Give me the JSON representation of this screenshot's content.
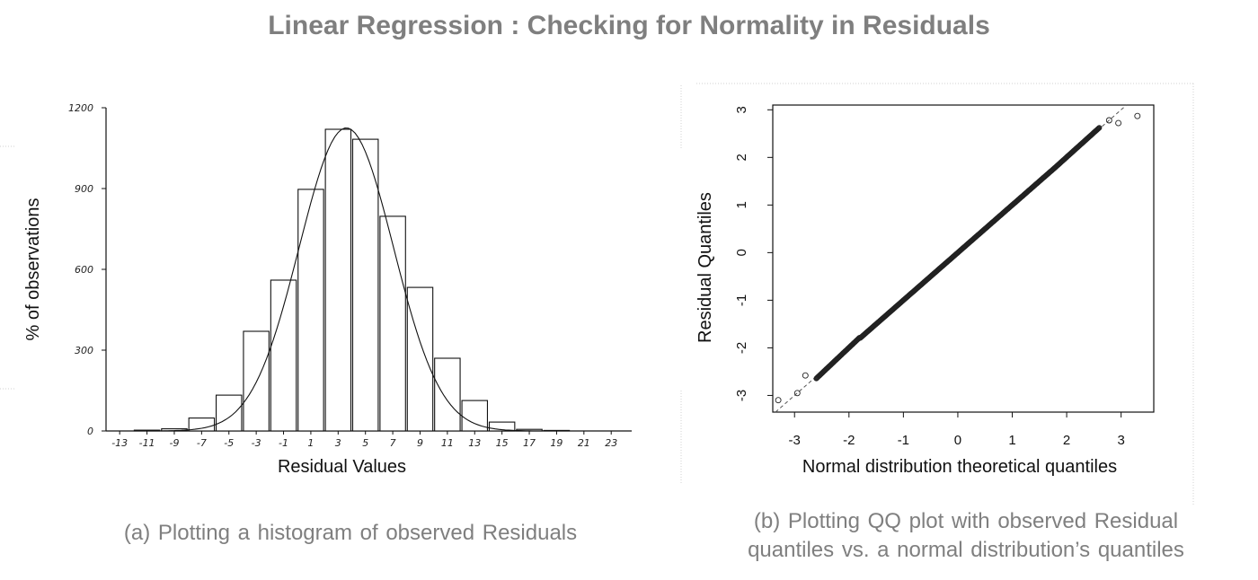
{
  "title": "Linear Regression : Checking for Normality in Residuals",
  "captions": {
    "left": "(a) Plotting  a histogram  of observed  Residuals",
    "right_line1": "(b) Plotting  QQ plot with observed  Residual",
    "right_line2": "quantiles  vs.  a normal  distribution’s  quantiles"
  },
  "chart_data": [
    {
      "type": "bar",
      "xlabel": "Residual Values",
      "ylabel": "% of observations",
      "ylim": [
        0,
        1200
      ],
      "yticks": [
        0,
        300,
        600,
        900,
        1200
      ],
      "xtick_labels": [
        "-13",
        "-11",
        "-9",
        "-7",
        "-5",
        "-3",
        "-1",
        "1",
        "3",
        "5",
        "7",
        "9",
        "11",
        "13",
        "15",
        "17",
        "19",
        "21",
        "23"
      ],
      "categories": [
        "-11",
        "-9",
        "-7",
        "-5",
        "-3",
        "-1",
        "1",
        "3",
        "5",
        "7",
        "9",
        "11",
        "13",
        "15",
        "17",
        "19"
      ],
      "values": [
        3,
        8,
        48,
        133,
        370,
        560,
        897,
        1120,
        1083,
        797,
        533,
        270,
        113,
        33,
        6,
        2
      ],
      "overlay": "normal density curve",
      "grid": false
    },
    {
      "type": "scatter",
      "xlabel": "Normal distribution theoretical quantiles",
      "ylabel": "Residual Quantiles",
      "xlim": [
        -3.4,
        3.6
      ],
      "ylim": [
        -3.35,
        3.1
      ],
      "xticks": [
        -3,
        -2,
        -1,
        0,
        1,
        2,
        3
      ],
      "yticks": [
        -3,
        -2,
        -1,
        0,
        1,
        2,
        3
      ],
      "reference_line": {
        "intercept": 0,
        "slope": 1,
        "style": "dashed"
      },
      "extreme_points": [
        {
          "x": -3.3,
          "y": -3.1
        },
        {
          "x": -2.95,
          "y": -2.95
        },
        {
          "x": -2.8,
          "y": -2.58
        },
        {
          "x": 2.78,
          "y": 2.78
        },
        {
          "x": 2.95,
          "y": 2.72
        },
        {
          "x": 3.3,
          "y": 2.87
        }
      ],
      "grid": false
    }
  ]
}
